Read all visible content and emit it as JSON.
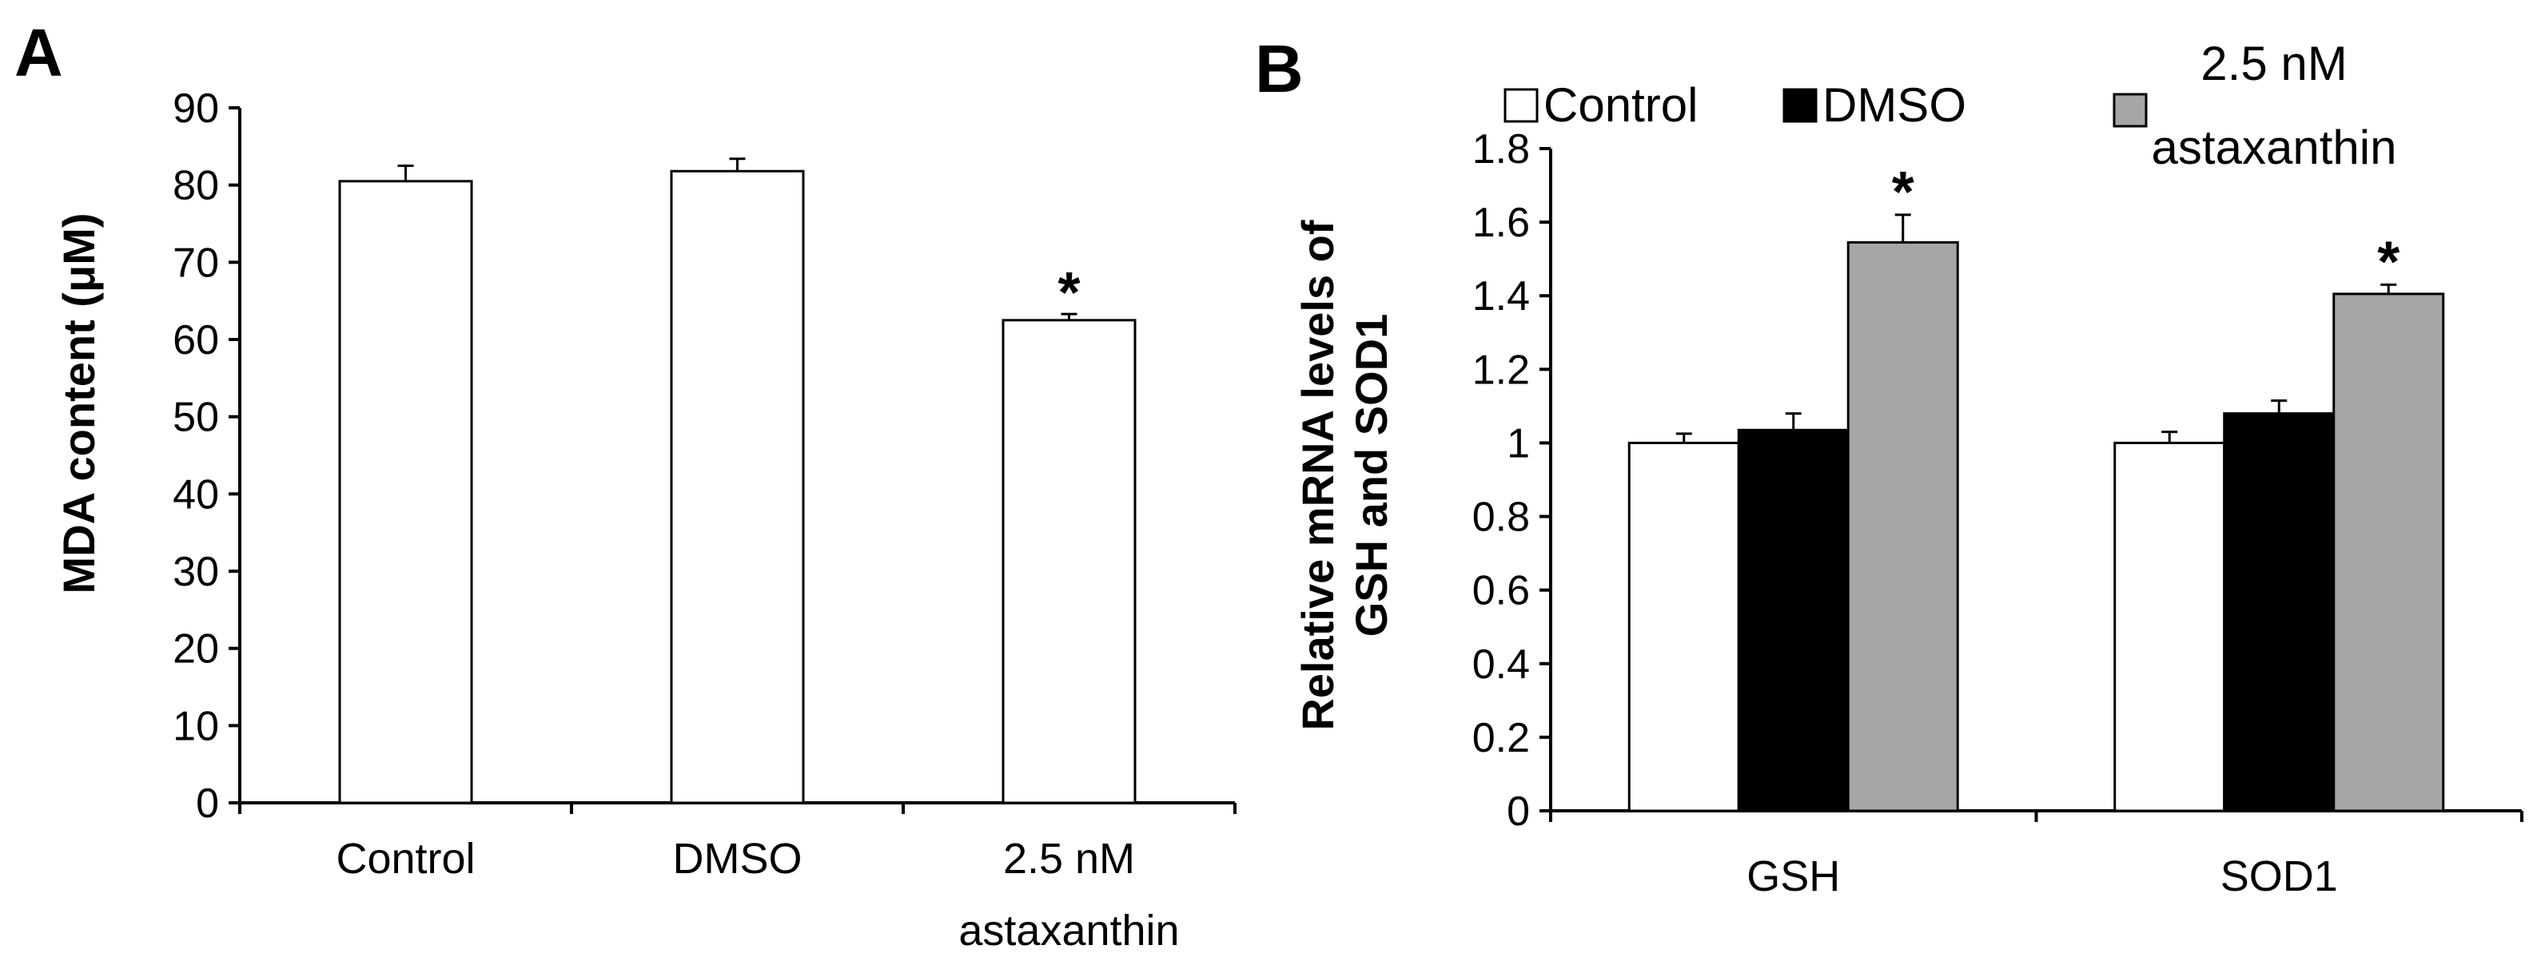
{
  "chart_data": [
    {
      "panel": "A",
      "type": "bar",
      "title": "",
      "xlabel": "",
      "ylabel": "MDA content (μM)",
      "ylim": [
        0,
        90
      ],
      "yticks": [
        "0",
        "10",
        "20",
        "30",
        "40",
        "50",
        "60",
        "70",
        "80",
        "90"
      ],
      "categories": [
        {
          "lines": [
            "Control"
          ]
        },
        {
          "lines": [
            "DMSO"
          ]
        },
        {
          "lines": [
            "2.5 nM",
            "astaxanthin"
          ]
        }
      ],
      "values": [
        80.5,
        81.8,
        62.5
      ],
      "errors": [
        2.0,
        1.6,
        0.8
      ],
      "significance": [
        "",
        "",
        "*"
      ],
      "bar_color": "#ffffff",
      "edge_color": "#000000"
    },
    {
      "panel": "B",
      "type": "bar",
      "title": "",
      "xlabel": "",
      "ylabel_lines": [
        "Relative mRNA levels of",
        "GSH and SOD1"
      ],
      "ylim": [
        0,
        1.8
      ],
      "yticks": [
        "0",
        "0.2",
        "0.4",
        "0.6",
        "0.8",
        "1",
        "1.2",
        "1.4",
        "1.6",
        "1.8"
      ],
      "categories": [
        "GSH",
        "SOD1"
      ],
      "legend_position": "top",
      "series": [
        {
          "name_lines": [
            "Control"
          ],
          "color": "#ffffff",
          "values": [
            1.0,
            1.0
          ],
          "errors": [
            0.025,
            0.03
          ],
          "significance": [
            "",
            ""
          ]
        },
        {
          "name_lines": [
            "DMSO"
          ],
          "color": "#000000",
          "values": [
            1.035,
            1.08
          ],
          "errors": [
            0.045,
            0.035
          ],
          "significance": [
            "",
            ""
          ]
        },
        {
          "name_lines": [
            "2.5 nM",
            "astaxanthin"
          ],
          "color": "#a6a6a6",
          "values": [
            1.545,
            1.405
          ],
          "errors": [
            0.075,
            0.025
          ],
          "significance": [
            "*",
            "*"
          ]
        }
      ]
    }
  ]
}
